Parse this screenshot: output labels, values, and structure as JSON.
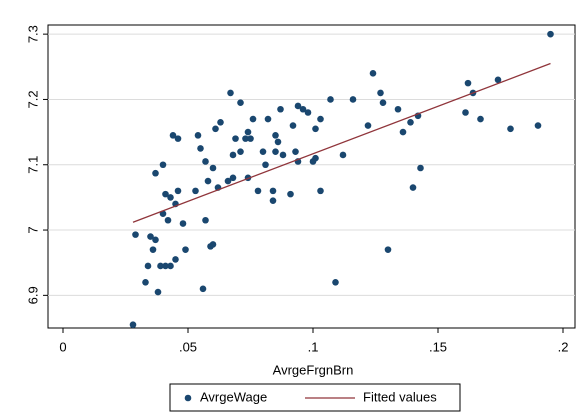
{
  "chart_data": {
    "type": "scatter",
    "x_label": "AvrgeFrgnBrn",
    "xlim": [
      -0.006,
      0.2048
    ],
    "ylim": [
      6.85,
      7.314
    ],
    "xticks": [
      0,
      {
        "value": 0.05,
        "label": ".05"
      },
      {
        "value": 0.1,
        "label": ".1"
      },
      {
        "value": 0.15,
        "label": ".15"
      },
      {
        "value": 0.2,
        "label": ".2"
      }
    ],
    "yticks": [
      6.9,
      7,
      7.1,
      7.2,
      7.3
    ],
    "grid": true,
    "legend": "bottom",
    "series": [
      {
        "name": "AvrgeWage",
        "color": "#1a476f",
        "kind": "points",
        "x": [
          0.028,
          0.029,
          0.033,
          0.034,
          0.035,
          0.036,
          0.037,
          0.037,
          0.038,
          0.039,
          0.04,
          0.04,
          0.041,
          0.041,
          0.042,
          0.043,
          0.043,
          0.044,
          0.045,
          0.045,
          0.046,
          0.046,
          0.048,
          0.049,
          0.053,
          0.054,
          0.055,
          0.056,
          0.057,
          0.057,
          0.058,
          0.059,
          0.06,
          0.06,
          0.061,
          0.062,
          0.063,
          0.066,
          0.067,
          0.068,
          0.068,
          0.069,
          0.071,
          0.071,
          0.073,
          0.074,
          0.074,
          0.075,
          0.076,
          0.078,
          0.08,
          0.081,
          0.082,
          0.084,
          0.084,
          0.085,
          0.085,
          0.086,
          0.087,
          0.088,
          0.091,
          0.092,
          0.093,
          0.094,
          0.094,
          0.096,
          0.098,
          0.1,
          0.101,
          0.101,
          0.103,
          0.103,
          0.107,
          0.109,
          0.112,
          0.116,
          0.122,
          0.124,
          0.127,
          0.128,
          0.13,
          0.134,
          0.136,
          0.139,
          0.14,
          0.142,
          0.143,
          0.161,
          0.162,
          0.164,
          0.167,
          0.174,
          0.179,
          0.19,
          0.195
        ],
        "values": [
          6.855,
          6.993,
          6.92,
          6.945,
          6.99,
          6.97,
          6.985,
          7.087,
          6.905,
          6.945,
          7.1,
          7.025,
          6.945,
          7.055,
          7.015,
          6.945,
          7.05,
          7.145,
          7.04,
          6.955,
          7.06,
          7.14,
          7.01,
          6.97,
          7.06,
          7.145,
          7.125,
          6.91,
          7.015,
          7.105,
          7.075,
          6.975,
          6.978,
          7.095,
          7.155,
          7.065,
          7.165,
          7.075,
          7.21,
          7.08,
          7.115,
          7.14,
          7.195,
          7.12,
          7.14,
          7.15,
          7.08,
          7.14,
          7.17,
          7.06,
          7.12,
          7.1,
          7.17,
          7.045,
          7.06,
          7.145,
          7.12,
          7.135,
          7.185,
          7.115,
          7.055,
          7.16,
          7.12,
          7.105,
          7.19,
          7.185,
          7.18,
          7.105,
          7.11,
          7.155,
          7.17,
          7.06,
          7.2,
          6.92,
          7.115,
          7.2,
          7.16,
          7.24,
          7.21,
          7.195,
          6.97,
          7.185,
          7.15,
          7.165,
          7.065,
          7.175,
          7.095,
          7.18,
          7.225,
          7.21,
          7.17,
          7.23,
          7.155,
          7.16,
          7.3
        ]
      },
      {
        "name": "Fitted values",
        "color": "#90353b",
        "kind": "line",
        "x": [
          0.028,
          0.195
        ],
        "values": [
          7.012,
          7.255
        ]
      }
    ]
  }
}
